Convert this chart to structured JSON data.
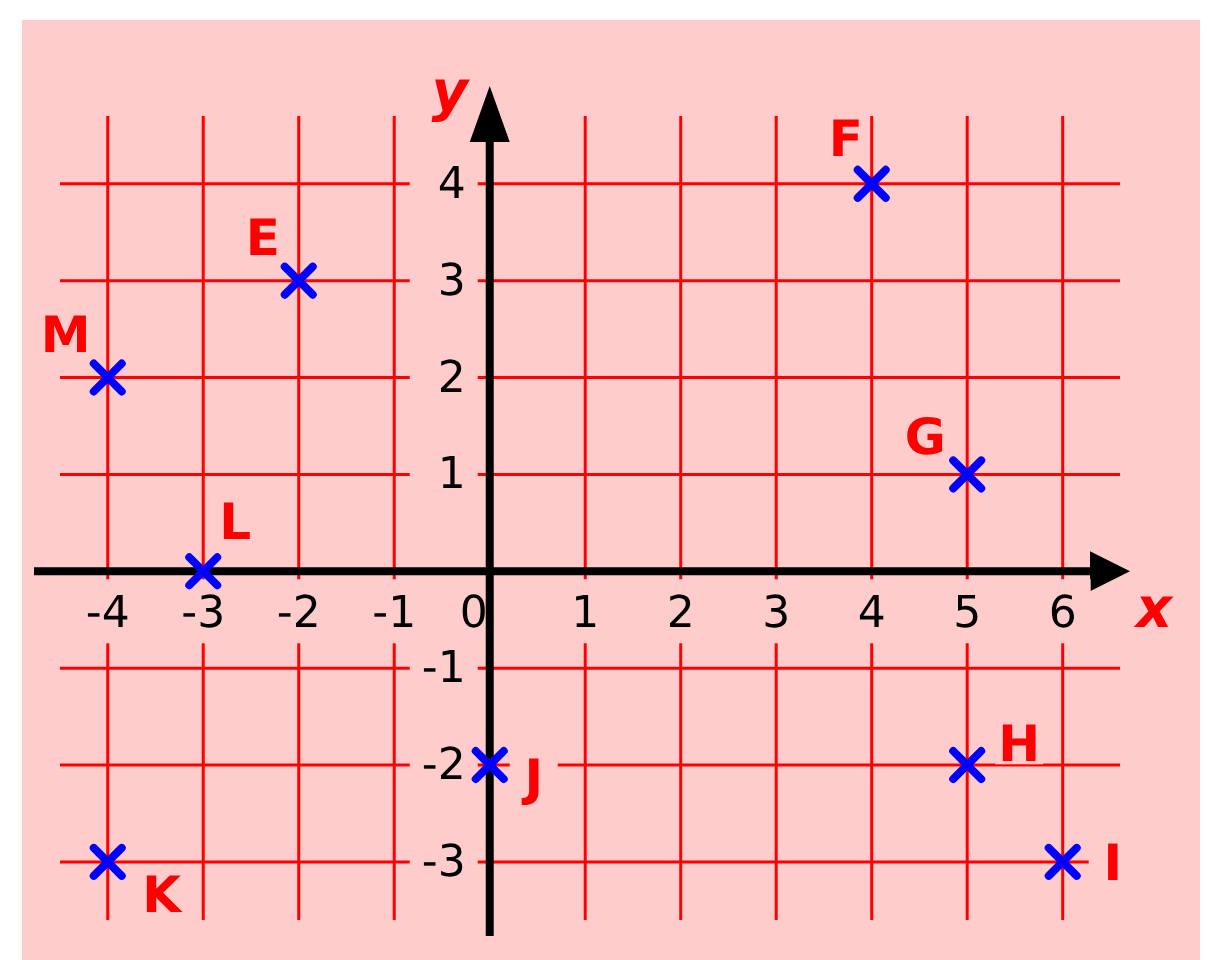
{
  "chart_data": {
    "type": "scatter",
    "xlabel": "x",
    "ylabel": "y",
    "x": [
      -2,
      4,
      5,
      5,
      6,
      0,
      -4,
      -3,
      -4
    ],
    "series": [
      {
        "color": "#0000ff",
        "values": [
          3,
          4,
          1,
          -2,
          -3,
          -2,
          -3,
          0,
          2
        ]
      }
    ],
    "xlim": [
      -4.5,
      6.6
    ],
    "ylim": [
      -3.6,
      4.7
    ],
    "xticks": [
      -4,
      -3,
      -2,
      -1,
      0,
      1,
      2,
      3,
      4,
      5,
      6
    ],
    "yticks": [
      -3,
      -2,
      -1,
      {
        "value": 0,
        "label": null
      },
      1,
      2,
      3,
      4
    ],
    "grid": true,
    "marker": "cross",
    "annotations": [
      {
        "text": "E",
        "x": -2,
        "y": 3
      },
      {
        "text": "F",
        "x": 4,
        "y": 4
      },
      {
        "text": "G",
        "x": 5,
        "y": 1
      },
      {
        "text": "H",
        "x": 5,
        "y": -2
      },
      {
        "text": "I",
        "x": 6,
        "y": -3
      },
      {
        "text": "J",
        "x": 0,
        "y": -2
      },
      {
        "text": "K",
        "x": -4,
        "y": -3
      },
      {
        "text": "L",
        "x": -3,
        "y": 0
      },
      {
        "text": "M",
        "x": -4,
        "y": 2
      }
    ]
  }
}
